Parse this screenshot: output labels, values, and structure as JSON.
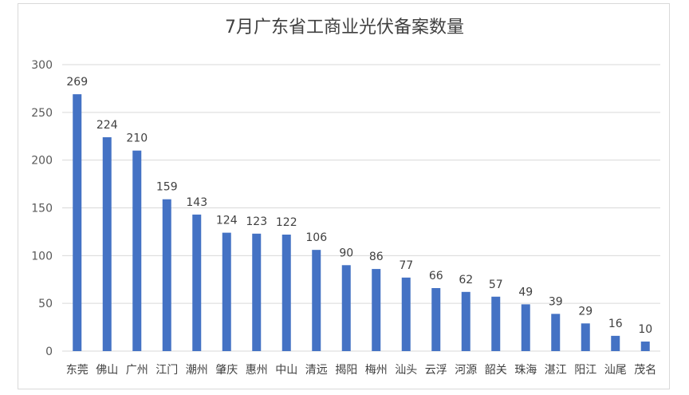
{
  "chart_data": {
    "type": "bar",
    "title": "7月广东省工商业光伏备案数量",
    "categories": [
      "东莞",
      "佛山",
      "广州",
      "江门",
      "潮州",
      "肇庆",
      "惠州",
      "中山",
      "清远",
      "揭阳",
      "梅州",
      "汕头",
      "云浮",
      "河源",
      "韶关",
      "珠海",
      "湛江",
      "阳江",
      "汕尾",
      "茂名"
    ],
    "values": [
      269,
      224,
      210,
      159,
      143,
      124,
      123,
      122,
      106,
      90,
      86,
      77,
      66,
      62,
      57,
      49,
      39,
      29,
      16,
      10
    ],
    "ylim": [
      0,
      300
    ],
    "yticks": [
      0,
      50,
      100,
      150,
      200,
      250,
      300
    ],
    "xlabel": "",
    "ylabel": "",
    "grid": true,
    "bar_color": "#4472c4",
    "grid_color": "#d9d9d9"
  }
}
